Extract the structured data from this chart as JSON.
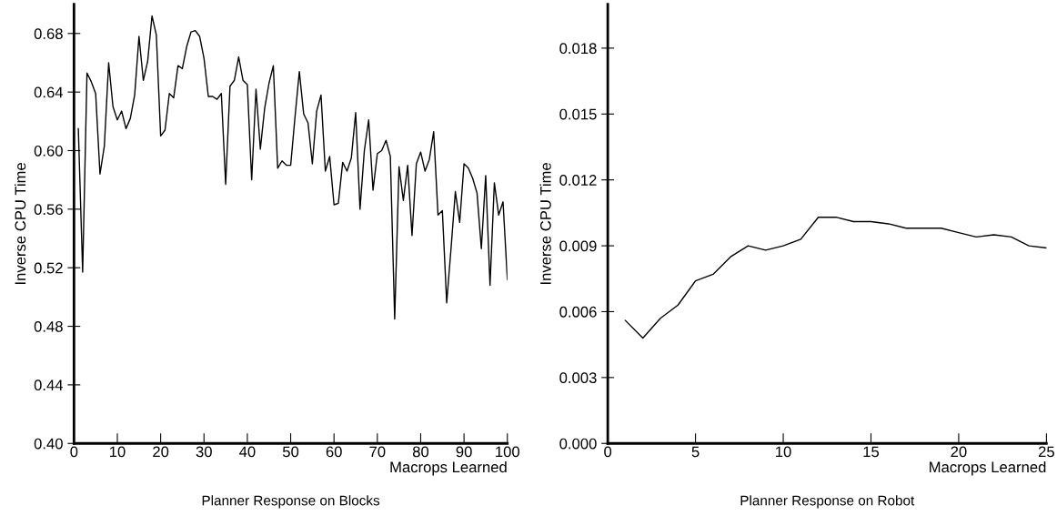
{
  "chart_data": [
    {
      "type": "line",
      "title": "Planner Response on Blocks",
      "xlabel": "Macrops Learned",
      "ylabel": "Inverse CPU Time",
      "x": [
        1,
        2,
        3,
        4,
        5,
        6,
        7,
        8,
        9,
        10,
        11,
        12,
        13,
        14,
        15,
        16,
        17,
        18,
        19,
        20,
        21,
        22,
        23,
        24,
        25,
        26,
        27,
        28,
        29,
        30,
        31,
        32,
        33,
        34,
        35,
        36,
        37,
        38,
        39,
        40,
        41,
        42,
        43,
        44,
        45,
        46,
        47,
        48,
        49,
        50,
        51,
        52,
        53,
        54,
        55,
        56,
        57,
        58,
        59,
        60,
        61,
        62,
        63,
        64,
        65,
        66,
        67,
        68,
        69,
        70,
        71,
        72,
        73,
        74,
        75,
        76,
        77,
        78,
        79,
        80,
        81,
        82,
        83,
        84,
        85,
        86,
        87,
        88,
        89,
        90,
        91,
        92,
        93,
        94,
        95,
        96,
        97,
        98,
        99,
        100
      ],
      "series": [
        {
          "color": "#000000",
          "values": [
            0.615,
            0.517,
            0.653,
            0.647,
            0.639,
            0.584,
            0.603,
            0.66,
            0.63,
            0.621,
            0.627,
            0.615,
            0.622,
            0.638,
            0.678,
            0.648,
            0.661,
            0.692,
            0.679,
            0.61,
            0.614,
            0.639,
            0.636,
            0.658,
            0.656,
            0.671,
            0.681,
            0.682,
            0.678,
            0.663,
            0.637,
            0.637,
            0.635,
            0.639,
            0.577,
            0.644,
            0.648,
            0.664,
            0.648,
            0.645,
            0.58,
            0.642,
            0.601,
            0.629,
            0.646,
            0.658,
            0.588,
            0.593,
            0.59,
            0.59,
            0.623,
            0.654,
            0.625,
            0.619,
            0.591,
            0.627,
            0.638,
            0.586,
            0.596,
            0.563,
            0.564,
            0.592,
            0.586,
            0.595,
            0.626,
            0.56,
            0.6,
            0.621,
            0.573,
            0.598,
            0.6,
            0.607,
            0.596,
            0.485,
            0.589,
            0.566,
            0.59,
            0.542,
            0.591,
            0.599,
            0.586,
            0.594,
            0.613,
            0.556,
            0.559,
            0.496,
            0.533,
            0.572,
            0.551,
            0.591,
            0.588,
            0.581,
            0.571,
            0.533,
            0.583,
            0.508,
            0.578,
            0.556,
            0.565,
            0.512
          ]
        }
      ],
      "xlim": [
        0,
        100
      ],
      "xticks": [
        0,
        10,
        20,
        30,
        40,
        50,
        60,
        70,
        80,
        90,
        100
      ],
      "ylim": [
        0.4,
        0.7
      ],
      "yticks": [
        {
          "value": 0.4,
          "label": "0.40"
        },
        {
          "value": 0.44,
          "label": "0.44"
        },
        {
          "value": 0.48,
          "label": "0.48"
        },
        {
          "value": 0.52,
          "label": "0.52"
        },
        {
          "value": 0.56,
          "label": "0.56"
        },
        {
          "value": 0.6,
          "label": "0.60"
        },
        {
          "value": 0.64,
          "label": "0.64"
        },
        {
          "value": 0.68,
          "label": "0.68"
        }
      ],
      "grid": false,
      "legend": false,
      "marker": "none",
      "line_style": "solid"
    },
    {
      "type": "line",
      "title": "Planner Response on Robot",
      "xlabel": "Macrops Learned",
      "ylabel": "Inverse CPU Time",
      "x": [
        1,
        2,
        3,
        4,
        5,
        6,
        7,
        8,
        9,
        10,
        11,
        12,
        13,
        14,
        15,
        16,
        17,
        18,
        19,
        20,
        21,
        22,
        23,
        24,
        25
      ],
      "series": [
        {
          "color": "#000000",
          "values": [
            0.0056,
            0.0048,
            0.0057,
            0.0063,
            0.0074,
            0.0077,
            0.0085,
            0.009,
            0.0088,
            0.009,
            0.0093,
            0.0103,
            0.0103,
            0.0101,
            0.0101,
            0.01,
            0.0098,
            0.0098,
            0.0098,
            0.0096,
            0.0094,
            0.0095,
            0.0094,
            0.009,
            0.0089
          ]
        }
      ],
      "xlim": [
        0,
        25
      ],
      "xticks": [
        0,
        5,
        10,
        15,
        20,
        25
      ],
      "ylim": [
        0,
        0.02
      ],
      "yticks": [
        {
          "value": 0,
          "label": "0.000"
        },
        {
          "value": 0.003,
          "label": "0.003"
        },
        {
          "value": 0.006,
          "label": "0.006"
        },
        {
          "value": 0.009,
          "label": "0.009"
        },
        {
          "value": 0.012,
          "label": "0.012"
        },
        {
          "value": 0.015,
          "label": "0.015"
        },
        {
          "value": 0.018,
          "label": "0.018"
        }
      ],
      "grid": false,
      "legend": false,
      "marker": "none",
      "line_style": "solid"
    }
  ]
}
